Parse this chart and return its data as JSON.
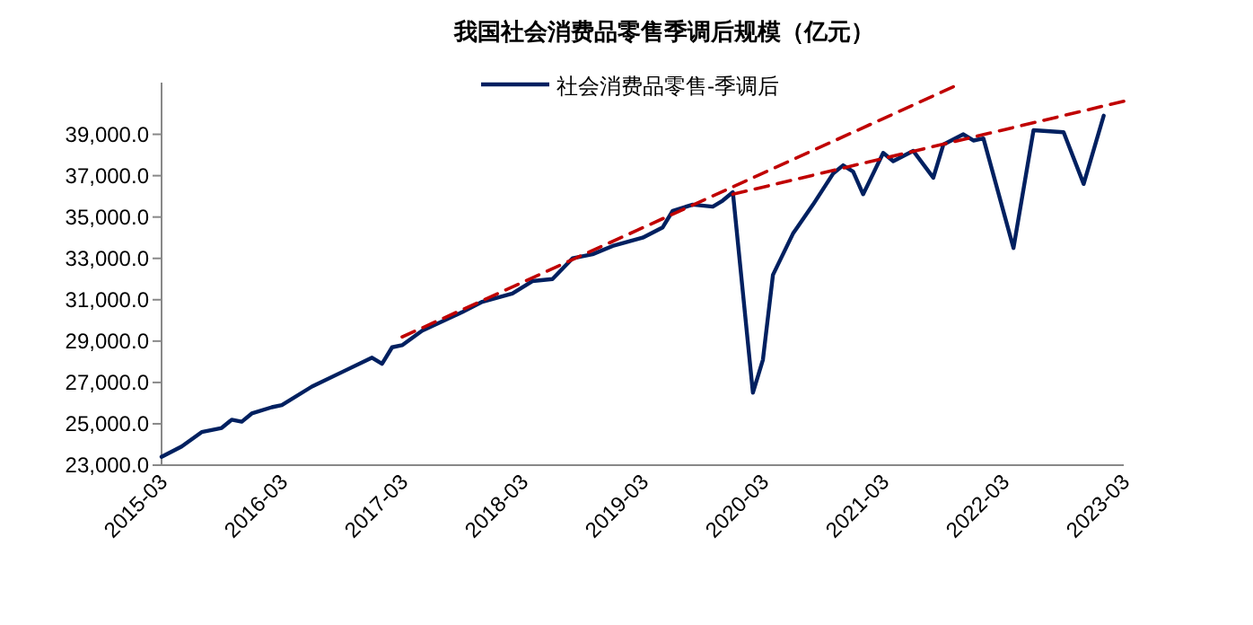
{
  "chart_data": {
    "type": "line",
    "title": "我国社会消费品零售季调后规模（亿元）",
    "x": [
      "2015-03",
      "2015-05",
      "2015-07",
      "2015-09",
      "2015-10",
      "2015-11",
      "2015-12",
      "2016-02",
      "2016-03",
      "2016-06",
      "2016-09",
      "2016-12",
      "2017-01",
      "2017-02",
      "2017-03",
      "2017-05",
      "2017-09",
      "2017-11",
      "2018-02",
      "2018-04",
      "2018-06",
      "2018-08",
      "2018-10",
      "2018-12",
      "2019-03",
      "2019-05",
      "2019-06",
      "2019-08",
      "2019-10",
      "2019-11",
      "2019-12",
      "2020-02",
      "2020-03",
      "2020-04",
      "2020-06",
      "2020-08",
      "2020-10",
      "2020-11",
      "2020-12",
      "2021-01",
      "2021-03",
      "2021-04",
      "2021-06",
      "2021-08",
      "2021-09",
      "2021-11",
      "2021-12",
      "2022-01",
      "2022-04",
      "2022-06",
      "2022-09",
      "2022-11",
      "2023-01"
    ],
    "series": [
      {
        "name": "社会消费品零售-季调后",
        "color": "#002060",
        "values": [
          23400,
          23900,
          24600,
          24800,
          25200,
          25100,
          25500,
          25800,
          25900,
          26800,
          27500,
          28200,
          27900,
          28700,
          28800,
          29500,
          30400,
          30900,
          31300,
          31900,
          32000,
          33000,
          33200,
          33600,
          34000,
          34500,
          35300,
          35600,
          35500,
          35800,
          36200,
          26500,
          28100,
          32200,
          34200,
          35600,
          37100,
          37500,
          37200,
          36100,
          38100,
          37700,
          38200,
          36900,
          38500,
          39000,
          38700,
          38800,
          33500,
          39200,
          39100,
          36600,
          39900
        ]
      },
      {
        "type": "line",
        "color": "#c00000",
        "line_style": "dashed",
        "x": [
          "2017-03",
          "2021-10"
        ],
        "values": [
          29200,
          41300
        ]
      },
      {
        "type": "line",
        "color": "#c00000",
        "line_style": "dashed",
        "x": [
          "2019-12",
          "2023-03"
        ],
        "values": [
          36100,
          40600
        ]
      }
    ],
    "xlim": [
      "2015-03",
      "2023-03"
    ],
    "xticks": [
      "2015-03",
      "2016-03",
      "2017-03",
      "2018-03",
      "2019-03",
      "2020-03",
      "2021-03",
      "2022-03",
      "2023-03"
    ],
    "ylim": [
      23000,
      41500
    ],
    "yticks": [
      {
        "value": 23000,
        "label": "23,000.0"
      },
      {
        "value": 25000,
        "label": "25,000.0"
      },
      {
        "value": 27000,
        "label": "27,000.0"
      },
      {
        "value": 29000,
        "label": "29,000.0"
      },
      {
        "value": 31000,
        "label": "31,000.0"
      },
      {
        "value": 33000,
        "label": "33,000.0"
      },
      {
        "value": 35000,
        "label": "35,000.0"
      },
      {
        "value": 37000,
        "label": "37,000.0"
      },
      {
        "value": 39000,
        "label": "39,000.0"
      }
    ],
    "grid": false,
    "legend": "top",
    "line_style": "solid",
    "marker": "none"
  }
}
